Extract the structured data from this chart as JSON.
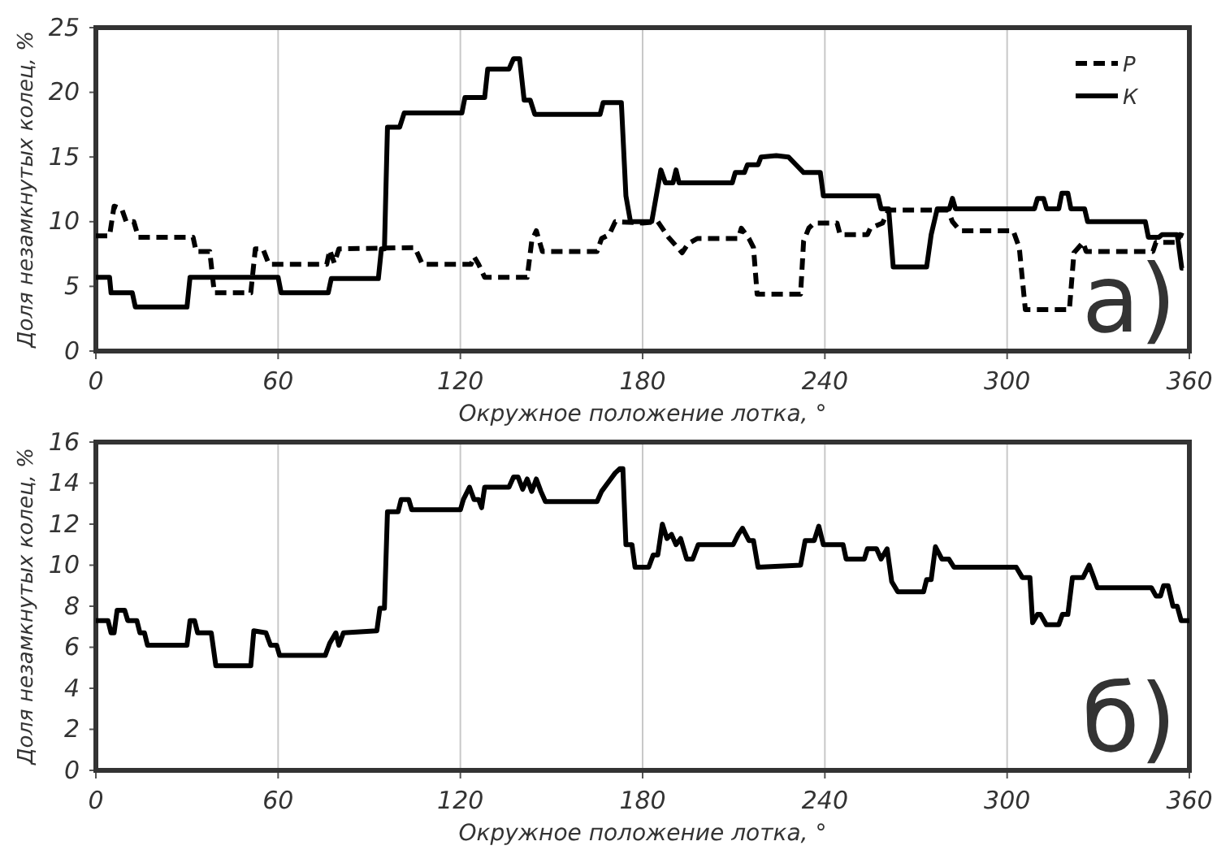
{
  "chart_data": [
    {
      "type": "line",
      "xlabel": "Окружное положение лотка, °",
      "ylabel": "Доля незамкнутых колец, %",
      "xlim": [
        0,
        360
      ],
      "xticks": [
        0,
        60,
        120,
        180,
        240,
        300,
        360
      ],
      "ylim": [
        0,
        25
      ],
      "yticks": [
        0,
        5,
        10,
        15,
        20,
        25
      ],
      "grid": "x",
      "legend": "top right",
      "marker": "none",
      "annotations": [
        "а)"
      ],
      "series": [
        {
          "name": "P",
          "color": "#000000",
          "line_style": "dashed",
          "x": [
            0,
            4.5,
            6,
            8.5,
            10,
            12.5,
            14,
            32,
            33,
            37.5,
            39,
            51,
            52.5,
            55,
            57,
            76,
            77,
            78.5,
            80,
            105,
            107.5,
            123.5,
            124.5,
            126,
            128,
            142,
            143.5,
            145,
            147,
            165,
            166.5,
            169,
            171,
            180,
            185,
            188.5,
            193,
            195,
            198,
            211.5,
            212.5,
            215,
            216.5,
            217.7,
            232,
            233,
            234.7,
            236.5,
            244,
            245,
            254,
            255,
            259,
            261,
            280.5,
            282,
            284.5,
            302,
            304,
            306,
            320.5,
            322,
            325,
            326,
            348,
            349,
            356,
            357,
            358
          ],
          "values": [
            8.9,
            8.9,
            11.2,
            11,
            10,
            10,
            8.8,
            8.8,
            7.7,
            7.7,
            4.5,
            4.5,
            7.9,
            7.9,
            6.7,
            6.7,
            7.8,
            6.8,
            7.9,
            8,
            6.7,
            6.7,
            7.3,
            6.7,
            5.7,
            5.7,
            8.5,
            9.3,
            7.7,
            7.7,
            8.7,
            9,
            10,
            9.9,
            10,
            8.8,
            7.6,
            8.3,
            8.7,
            8.7,
            9.5,
            8.7,
            8,
            4.4,
            4.4,
            8.5,
            9.5,
            9.9,
            9.9,
            9,
            9,
            9.5,
            9.9,
            10.9,
            10.9,
            10,
            9.3,
            9.3,
            8,
            3.2,
            3.2,
            7.6,
            8.4,
            7.7,
            7.7,
            8.4,
            8.4,
            9,
            8.9
          ]
        },
        {
          "name": "К",
          "color": "#000000",
          "line_style": "solid",
          "x": [
            0,
            4.5,
            5,
            12,
            13,
            30,
            31,
            60,
            61,
            76.5,
            77.5,
            93,
            94,
            95,
            96,
            100,
            101.5,
            120.5,
            121.5,
            128,
            129,
            136,
            137.5,
            139.5,
            141,
            143,
            144.5,
            166,
            167,
            173,
            174.5,
            176,
            183,
            184.5,
            186,
            187.5,
            190,
            191,
            192,
            209.5,
            210.5,
            213.5,
            214.5,
            218,
            219,
            224,
            228,
            230.5,
            233,
            238.5,
            239.5,
            257.5,
            258.5,
            261,
            262.5,
            273.5,
            275,
            277,
            281,
            282,
            283,
            309,
            310,
            312,
            313,
            317,
            318,
            320,
            321,
            325.5,
            326.5,
            345.5,
            346.5,
            350,
            351,
            356,
            357.5,
            358
          ],
          "values": [
            5.7,
            5.7,
            4.5,
            4.5,
            3.4,
            3.4,
            5.7,
            5.7,
            4.5,
            4.5,
            5.6,
            5.6,
            7.9,
            7.9,
            17.3,
            17.3,
            18.4,
            18.4,
            19.6,
            19.6,
            21.8,
            21.8,
            22.6,
            22.6,
            19.4,
            19.4,
            18.3,
            18.3,
            19.2,
            19.2,
            12,
            10,
            10,
            12,
            14,
            13,
            13,
            14,
            13,
            13,
            13.8,
            13.8,
            14.4,
            14.4,
            15,
            15.1,
            15,
            14.4,
            13.8,
            13.8,
            12,
            12,
            11,
            11,
            6.5,
            6.5,
            9,
            11,
            11,
            11.8,
            11,
            11,
            11.8,
            11.8,
            11,
            11,
            12.2,
            12.2,
            11,
            11,
            10,
            10,
            8.8,
            8.8,
            9,
            9,
            6.4,
            6.4
          ]
        }
      ]
    },
    {
      "type": "line",
      "xlabel": "Окружное положение лотка, °",
      "ylabel": "Доля незамкнутых колец, %",
      "xlim": [
        0,
        360
      ],
      "xticks": [
        0,
        60,
        120,
        180,
        240,
        300,
        360
      ],
      "ylim": [
        0,
        16
      ],
      "yticks": [
        0,
        2,
        4,
        6,
        8,
        10,
        12,
        14,
        16
      ],
      "grid": "x",
      "marker": "none",
      "annotations": [
        "б)"
      ],
      "series": [
        {
          "color": "#000000",
          "line_style": "solid",
          "x": [
            0,
            4,
            5,
            6,
            7,
            9.5,
            10.5,
            13.5,
            14.5,
            16,
            17,
            30,
            31,
            32.5,
            33.5,
            38,
            39.5,
            51,
            52,
            56,
            57.5,
            59.5,
            60.5,
            75.5,
            77,
            79,
            80,
            81.5,
            92.5,
            93.5,
            95,
            96,
            99.5,
            100.5,
            103,
            104,
            120,
            121,
            123,
            124.5,
            126,
            127,
            128,
            136,
            137.5,
            139,
            140.5,
            142,
            143.5,
            145,
            146.5,
            148,
            165,
            166.5,
            169,
            171,
            172.5,
            173.5,
            174.5,
            176.5,
            177.5,
            182,
            183.5,
            185,
            186.5,
            188,
            189.5,
            191,
            192.5,
            194.5,
            196.5,
            198.3,
            209.8,
            211.5,
            212.9,
            215,
            216.5,
            218,
            232,
            233.5,
            236.5,
            238,
            239.5,
            246,
            247,
            253,
            254,
            257,
            258.5,
            260.5,
            262,
            264,
            272.5,
            273.5,
            275,
            276.4,
            278.5,
            280.8,
            282.5,
            303,
            305,
            307.5,
            308.4,
            310,
            311,
            312.9,
            317,
            318.2,
            320,
            321.5,
            325,
            327,
            328.5,
            329.7,
            347.5,
            349,
            350.5,
            351.5,
            353,
            354.6,
            356,
            357.3,
            360
          ],
          "values": [
            7.3,
            7.3,
            6.7,
            6.7,
            7.8,
            7.8,
            7.3,
            7.3,
            6.7,
            6.7,
            6.1,
            6.1,
            7.3,
            7.3,
            6.7,
            6.7,
            5.1,
            5.1,
            6.8,
            6.7,
            6.1,
            6.1,
            5.6,
            5.6,
            6.2,
            6.7,
            6.1,
            6.7,
            6.8,
            7.9,
            7.9,
            12.6,
            12.6,
            13.2,
            13.2,
            12.7,
            12.7,
            13.2,
            13.8,
            13.2,
            13.2,
            12.8,
            13.8,
            13.8,
            14.3,
            14.3,
            13.7,
            14.2,
            13.6,
            14.2,
            13.6,
            13.1,
            13.1,
            13.6,
            14.1,
            14.5,
            14.7,
            14.7,
            11,
            11,
            9.9,
            9.9,
            10.5,
            10.5,
            12,
            11.3,
            11.5,
            11,
            11.3,
            10.3,
            10.3,
            11,
            11,
            11.5,
            11.8,
            11.2,
            11.2,
            9.9,
            10,
            11.2,
            11.2,
            11.9,
            11,
            11,
            10.3,
            10.3,
            10.8,
            10.8,
            10.3,
            10.8,
            9.2,
            8.7,
            8.7,
            9.3,
            9.3,
            10.9,
            10.3,
            10.3,
            9.9,
            9.9,
            9.4,
            9.4,
            7.2,
            7.6,
            7.6,
            7.1,
            7.1,
            7.6,
            7.6,
            9.4,
            9.4,
            10,
            9.4,
            8.9,
            8.9,
            8.5,
            8.5,
            9,
            9,
            8,
            8,
            7.3,
            7.3
          ]
        }
      ]
    }
  ]
}
